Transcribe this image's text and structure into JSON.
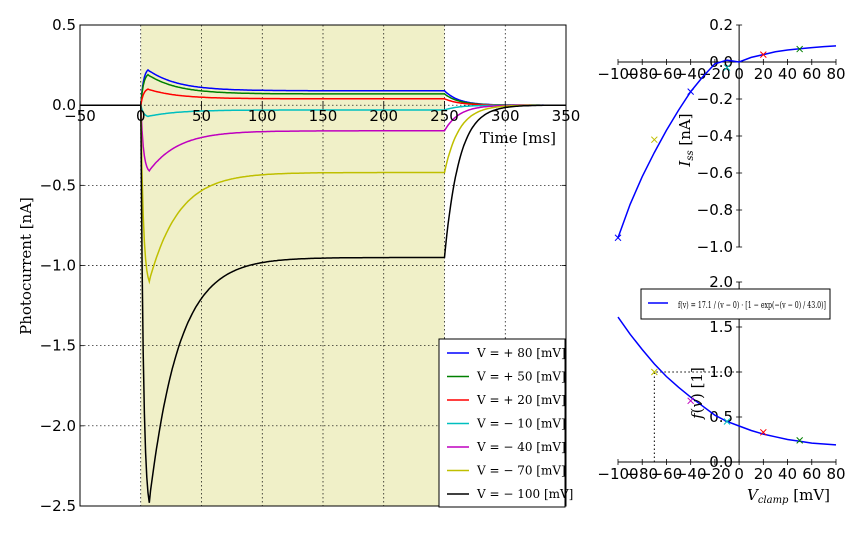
{
  "chart_data": [
    {
      "type": "line",
      "xlabel": "Time [ms]",
      "ylabel": "Photocurrent [nA]",
      "xlim": [
        -50,
        350
      ],
      "ylim": [
        -2.5,
        0.5
      ],
      "xticks": [
        -50,
        0,
        50,
        100,
        150,
        200,
        250,
        300,
        350
      ],
      "yticks": [
        -2.5,
        -2.0,
        -1.5,
        -1.0,
        -0.5,
        0.0,
        0.5
      ],
      "xtick_labels": [
        "−50",
        "0",
        "50",
        "100",
        "150",
        "200",
        "250",
        "300",
        "350"
      ],
      "ytick_labels": [
        "−2.5",
        "−2.0",
        "−1.5",
        "−1.0",
        "−0.5",
        "0.0",
        "0.5"
      ],
      "grid": true,
      "shaded_interval": [
        0,
        250
      ],
      "shaded_color": "#f0f0c8",
      "legend_position": "lower-right",
      "series": [
        {
          "name": "V = + 80 [mV]",
          "color": "#0000ff",
          "peak": 0.22,
          "steady": 0.09,
          "peak_time": 6
        },
        {
          "name": "V = + 50 [mV]",
          "color": "#008000",
          "peak": 0.19,
          "steady": 0.07,
          "peak_time": 6
        },
        {
          "name": "V = + 20 [mV]",
          "color": "#ff0000",
          "peak": 0.1,
          "steady": 0.04,
          "peak_time": 6
        },
        {
          "name": "V = − 10 [mV]",
          "color": "#00bfbf",
          "peak": -0.07,
          "steady": -0.03,
          "peak_time": 6
        },
        {
          "name": "V = − 40 [mV]",
          "color": "#bf00bf",
          "peak": -0.41,
          "steady": -0.16,
          "peak_time": 7
        },
        {
          "name": "V = − 70 [mV]",
          "color": "#bfbf00",
          "peak": -1.1,
          "steady": -0.42,
          "peak_time": 7
        },
        {
          "name": "V = − 100 [mV]",
          "color": "#000000",
          "peak": -2.48,
          "steady": -0.95,
          "peak_time": 7
        }
      ]
    },
    {
      "type": "line",
      "ylabel": "I_ss [nA]",
      "xlim": [
        -100,
        80
      ],
      "ylim": [
        -1.0,
        0.2
      ],
      "xticks": [
        -100,
        -80,
        -60,
        -40,
        -20,
        0,
        20,
        40,
        60,
        80
      ],
      "yticks": [
        -1.0,
        -0.8,
        -0.6,
        -0.4,
        -0.2,
        0.0,
        0.2
      ],
      "xtick_labels": [
        "−100",
        "−80",
        "−60",
        "−40",
        "−20",
        "0",
        "20",
        "40",
        "60",
        "80"
      ],
      "ytick_labels": [
        "−1.0",
        "−0.8",
        "−0.6",
        "−0.4",
        "−0.2",
        "0.0",
        "0.2"
      ],
      "fit": {
        "color": "#0000ff",
        "x": [
          -100,
          -90,
          -80,
          -70,
          -60,
          -50,
          -40,
          -30,
          -20,
          -10,
          0,
          10,
          20,
          30,
          40,
          50,
          60,
          70,
          80
        ],
        "y": [
          -0.95,
          -0.77,
          -0.62,
          -0.49,
          -0.37,
          -0.26,
          -0.16,
          -0.08,
          -0.01,
          0.01,
          0.0,
          0.025,
          0.04,
          0.055,
          0.065,
          0.072,
          0.078,
          0.083,
          0.087
        ]
      },
      "points": [
        {
          "x": -100,
          "y": -0.95,
          "color": "#0000ff"
        },
        {
          "x": -70,
          "y": -0.42,
          "color": "#bfbf00"
        },
        {
          "x": -40,
          "y": -0.16,
          "color": "#0000ff"
        },
        {
          "x": -10,
          "y": -0.03,
          "color": "#00bfbf"
        },
        {
          "x": 20,
          "y": 0.04,
          "color": "#ff0000"
        },
        {
          "x": 50,
          "y": 0.07,
          "color": "#008000"
        }
      ]
    },
    {
      "type": "line",
      "xlabel": "V_clamp [mV]",
      "ylabel": "f(v) [1]",
      "xlim": [
        -100,
        80
      ],
      "ylim": [
        0.0,
        2.0
      ],
      "xticks": [
        -100,
        -80,
        -60,
        -40,
        -20,
        0,
        20,
        40,
        60,
        80
      ],
      "yticks": [
        0.0,
        0.5,
        1.0,
        1.5,
        2.0
      ],
      "xtick_labels": [
        "−100",
        "−80",
        "−60",
        "−40",
        "−20",
        "0",
        "20",
        "40",
        "60",
        "80"
      ],
      "ytick_labels": [
        "0.0",
        "0.5",
        "1.0",
        "1.5",
        "2.0"
      ],
      "legend": "f(v) = 17.1 / (v − 0) · [1 − exp(−(v − 0) / 43.0)]",
      "legend_position": "top",
      "reference_line": {
        "x": -70,
        "y": 1.0
      },
      "fit": {
        "color": "#0000ff",
        "x": [
          -100,
          -90,
          -80,
          -70,
          -60,
          -50,
          -40,
          -30,
          -20,
          -10,
          0,
          10,
          20,
          30,
          40,
          50,
          60,
          70,
          80
        ],
        "y": [
          1.61,
          1.42,
          1.25,
          1.09,
          0.95,
          0.83,
          0.72,
          0.62,
          0.52,
          0.45,
          0.4,
          0.35,
          0.31,
          0.28,
          0.25,
          0.23,
          0.21,
          0.2,
          0.19
        ]
      },
      "points": [
        {
          "x": -70,
          "y": 1.0,
          "color": "#bfbf00"
        },
        {
          "x": -40,
          "y": 0.68,
          "color": "#bf00bf"
        },
        {
          "x": -10,
          "y": 0.45,
          "color": "#00bfbf"
        },
        {
          "x": 20,
          "y": 0.33,
          "color": "#ff0000"
        },
        {
          "x": 50,
          "y": 0.24,
          "color": "#008000"
        }
      ]
    }
  ]
}
